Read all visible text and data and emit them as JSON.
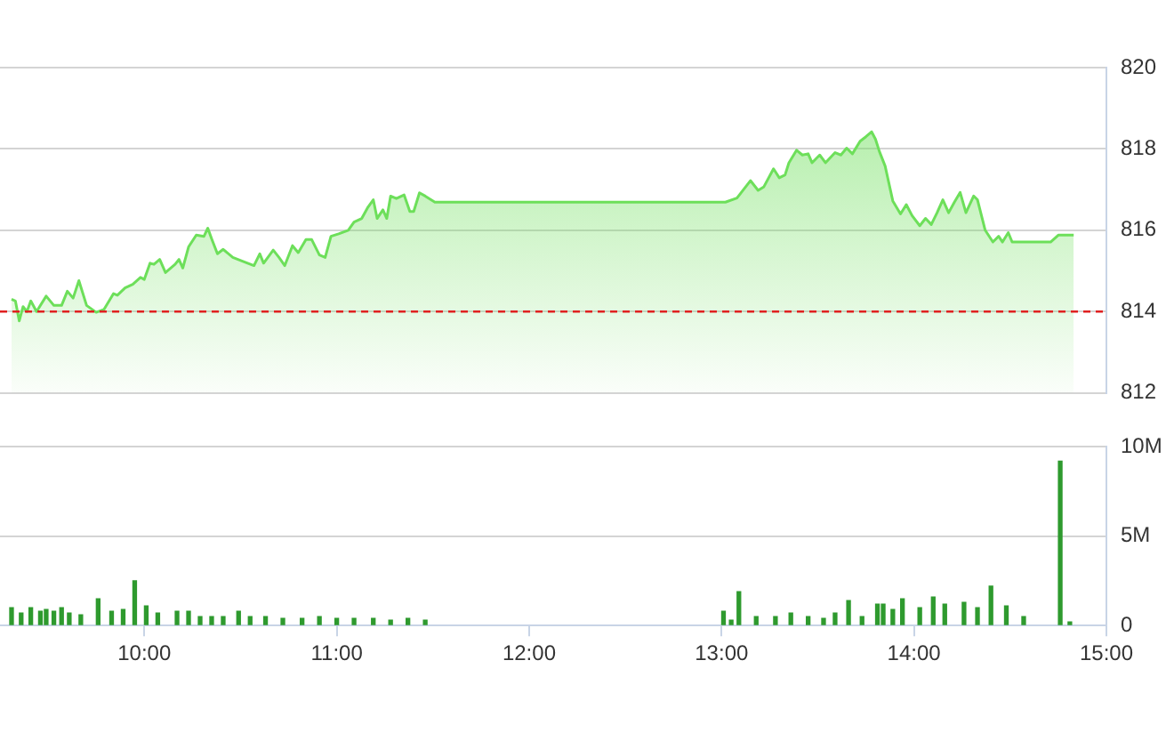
{
  "chart_data": [
    {
      "type": "area",
      "xlim": [
        9.25,
        15
      ],
      "ylim": [
        812,
        820
      ],
      "yticks": [
        812,
        814,
        816,
        818,
        820
      ],
      "grid": "y",
      "tick_labels": "y",
      "ref_lines": [
        {
          "axis": "y",
          "value": 814,
          "color": "#e02020",
          "line_style": "dashed"
        }
      ],
      "series": [
        {
          "color": "#6ddf5a",
          "x": [
            9.31,
            9.33,
            9.35,
            9.37,
            9.39,
            9.41,
            9.44,
            9.49,
            9.53,
            9.57,
            9.6,
            9.63,
            9.66,
            9.7,
            9.75,
            9.79,
            9.84,
            9.86,
            9.9,
            9.94,
            9.98,
            10.0,
            10.03,
            10.05,
            10.08,
            10.11,
            10.16,
            10.18,
            10.2,
            10.23,
            10.27,
            10.31,
            10.33,
            10.35,
            10.38,
            10.41,
            10.46,
            10.51,
            10.57,
            10.6,
            10.62,
            10.67,
            10.7,
            10.73,
            10.77,
            10.8,
            10.84,
            10.87,
            10.91,
            10.94,
            10.97,
            11.01,
            11.06,
            11.09,
            11.13,
            11.16,
            11.19,
            11.21,
            11.24,
            11.26,
            11.28,
            11.31,
            11.35,
            11.38,
            11.4,
            11.43,
            11.46,
            11.51,
            13.02,
            13.08,
            13.15,
            13.19,
            13.22,
            13.27,
            13.3,
            13.33,
            13.35,
            13.39,
            13.42,
            13.45,
            13.47,
            13.51,
            13.54,
            13.59,
            13.62,
            13.65,
            13.68,
            13.72,
            13.75,
            13.78,
            13.8,
            13.82,
            13.85,
            13.89,
            13.93,
            13.96,
            13.99,
            14.03,
            14.06,
            14.09,
            14.12,
            14.15,
            14.18,
            14.21,
            14.24,
            14.27,
            14.31,
            14.33,
            14.37,
            14.41,
            14.44,
            14.46,
            14.49,
            14.51,
            14.71,
            14.75,
            14.83
          ],
          "values": [
            814.3,
            814.26,
            813.77,
            814.12,
            814.0,
            814.26,
            814.0,
            814.38,
            814.15,
            814.15,
            814.5,
            814.33,
            814.76,
            814.15,
            813.98,
            814.05,
            814.44,
            814.4,
            814.58,
            814.67,
            814.84,
            814.79,
            815.19,
            815.16,
            815.28,
            814.96,
            815.16,
            815.28,
            815.07,
            815.59,
            815.88,
            815.85,
            816.05,
            815.79,
            815.42,
            815.53,
            815.33,
            815.24,
            815.13,
            815.42,
            815.19,
            815.51,
            815.33,
            815.13,
            815.62,
            815.45,
            815.77,
            815.77,
            815.39,
            815.33,
            815.85,
            815.91,
            816.0,
            816.2,
            816.29,
            816.55,
            816.75,
            816.29,
            816.5,
            816.29,
            816.84,
            816.78,
            816.87,
            816.46,
            816.46,
            816.92,
            816.84,
            816.69,
            816.69,
            816.79,
            817.22,
            816.98,
            817.07,
            817.51,
            817.29,
            817.36,
            817.66,
            817.97,
            817.85,
            817.88,
            817.66,
            817.85,
            817.66,
            817.91,
            817.85,
            818.02,
            817.88,
            818.19,
            818.3,
            818.42,
            818.24,
            817.94,
            817.58,
            816.72,
            816.4,
            816.63,
            816.36,
            816.11,
            816.29,
            816.14,
            816.43,
            816.75,
            816.43,
            816.69,
            816.93,
            816.43,
            816.84,
            816.75,
            816.0,
            815.71,
            815.85,
            815.71,
            815.94,
            815.71,
            815.71,
            815.88,
            815.88
          ]
        }
      ]
    },
    {
      "type": "bar",
      "xlim": [
        9.25,
        15
      ],
      "xticks": [
        {
          "value": 10,
          "label": "10:00"
        },
        {
          "value": 11,
          "label": "11:00"
        },
        {
          "value": 12,
          "label": "12:00"
        },
        {
          "value": 13,
          "label": "13:00"
        },
        {
          "value": 14,
          "label": "14:00"
        },
        {
          "value": 15,
          "label": "15:00"
        }
      ],
      "ylim": [
        0,
        10
      ],
      "yticks": [
        0,
        {
          "value": 5,
          "label": "5M"
        },
        {
          "value": 10,
          "label": "10M"
        }
      ],
      "grid": "y",
      "series": [
        {
          "color": "#2e9a2e",
          "x": [
            9.31,
            9.36,
            9.41,
            9.46,
            9.49,
            9.53,
            9.57,
            9.61,
            9.67,
            9.76,
            9.83,
            9.89,
            9.95,
            10.01,
            10.07,
            10.17,
            10.23,
            10.29,
            10.35,
            10.41,
            10.49,
            10.55,
            10.63,
            10.72,
            10.82,
            10.91,
            11.0,
            11.09,
            11.19,
            11.28,
            11.37,
            11.46,
            13.01,
            13.05,
            13.09,
            13.18,
            13.28,
            13.36,
            13.45,
            13.53,
            13.59,
            13.66,
            13.73,
            13.81,
            13.84,
            13.89,
            13.94,
            14.03,
            14.1,
            14.16,
            14.26,
            14.33,
            14.4,
            14.48,
            14.57,
            14.76,
            14.81
          ],
          "values": [
            1.0,
            0.7,
            1.0,
            0.8,
            0.9,
            0.8,
            1.0,
            0.7,
            0.6,
            1.5,
            0.8,
            0.9,
            2.5,
            1.1,
            0.7,
            0.8,
            0.8,
            0.5,
            0.5,
            0.5,
            0.8,
            0.5,
            0.5,
            0.4,
            0.4,
            0.5,
            0.4,
            0.4,
            0.4,
            0.3,
            0.4,
            0.3,
            0.8,
            0.3,
            1.9,
            0.5,
            0.5,
            0.7,
            0.5,
            0.4,
            0.7,
            1.4,
            0.5,
            1.2,
            1.2,
            0.9,
            1.5,
            1.0,
            1.6,
            1.2,
            1.3,
            1.0,
            2.2,
            1.1,
            0.5,
            9.2,
            0.2
          ]
        }
      ]
    }
  ]
}
